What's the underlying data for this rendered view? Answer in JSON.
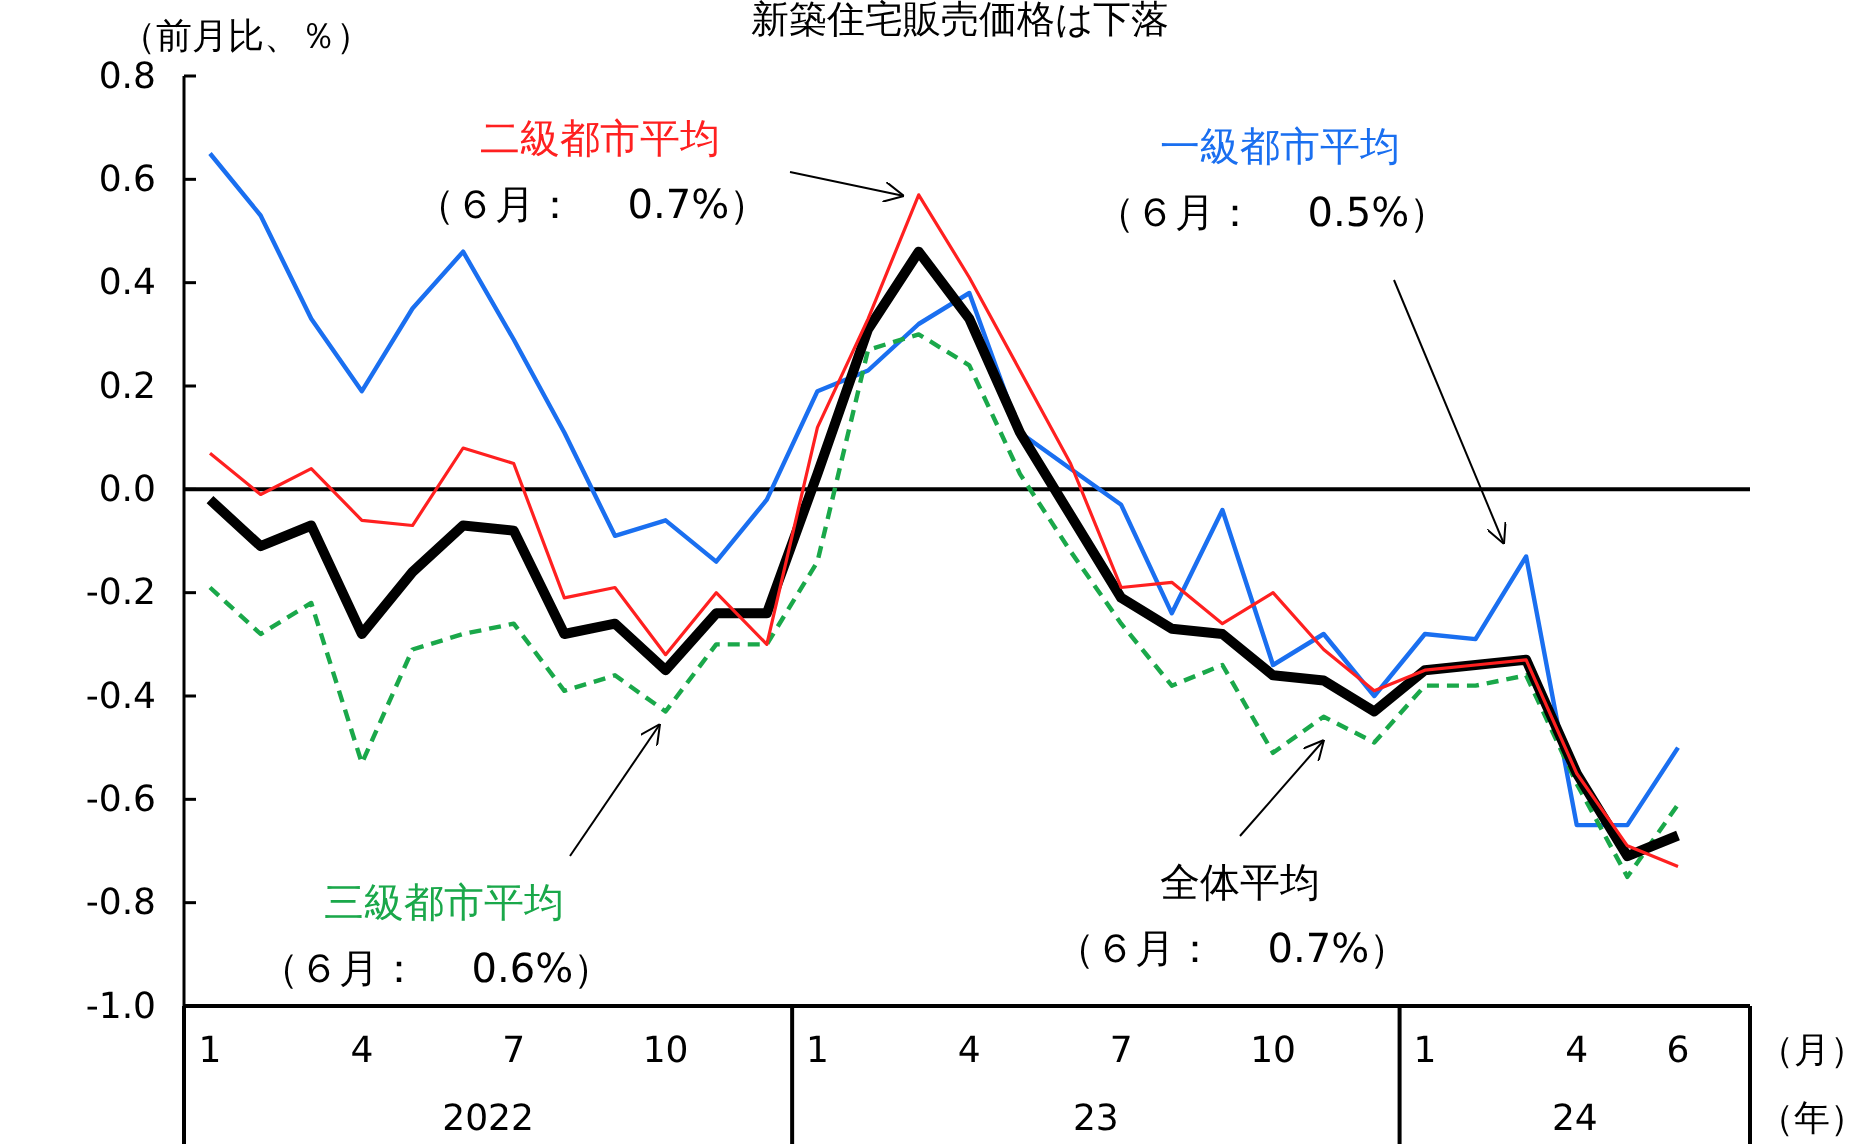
{
  "chart_data": {
    "type": "line",
    "title": "新築住宅販売価格は下落",
    "ylabel": "（前月比、％）",
    "xlabel": "（月）",
    "categories": [
      "1",
      null,
      null,
      "4",
      null,
      null,
      "7",
      null,
      null,
      "10",
      null,
      null,
      "1",
      null,
      null,
      "4",
      null,
      null,
      "7",
      null,
      null,
      "10",
      null,
      null,
      "1",
      null,
      null,
      "4",
      null,
      "6"
    ],
    "ylim": [
      -1.0,
      0.8
    ],
    "yticks": [
      {
        "value": -1.0,
        "label": "-1.0"
      },
      -0.8,
      -0.6,
      -0.4,
      -0.2,
      {
        "value": 0,
        "label": "0.0"
      },
      0.2,
      0.4,
      0.6,
      0.8
    ],
    "grid": false,
    "marker": "none",
    "ref_lines": [
      {
        "axis": "y",
        "value": 0,
        "color": "#000000"
      }
    ],
    "annotations": [
      "2022",
      "23",
      "24",
      "（年）",
      "（６月：　 0.5%）",
      "（６月：　 0.7%）",
      "（６月：　 0.6%）",
      "（６月：　 0.7%）"
    ],
    "series": [
      {
        "name": "一級都市平均",
        "color": "#1a6ff0",
        "line_style": "solid",
        "values": [
          0.65,
          0.53,
          0.33,
          0.19,
          0.35,
          0.46,
          0.29,
          0.11,
          -0.09,
          -0.06,
          -0.14,
          -0.02,
          0.19,
          0.23,
          0.32,
          0.38,
          0.11,
          0.04,
          -0.03,
          -0.24,
          -0.04,
          -0.34,
          -0.28,
          -0.4,
          -0.28,
          -0.29,
          -0.13,
          -0.65,
          -0.65,
          -0.5
        ]
      },
      {
        "name": "二級都市平均",
        "color": "#ff2020",
        "line_style": "solid",
        "values": [
          0.07,
          -0.01,
          0.04,
          -0.06,
          -0.07,
          0.08,
          0.05,
          -0.21,
          -0.19,
          -0.32,
          -0.2,
          -0.3,
          0.12,
          0.33,
          0.57,
          0.41,
          0.23,
          0.05,
          -0.19,
          -0.18,
          -0.26,
          -0.2,
          -0.31,
          -0.39,
          -0.35,
          -0.34,
          -0.33,
          -0.55,
          -0.69,
          -0.73
        ]
      },
      {
        "name": "三級都市平均",
        "color": "#1aa84a",
        "line_style": "dashed",
        "values": [
          -0.19,
          -0.28,
          -0.22,
          -0.53,
          -0.31,
          -0.28,
          -0.26,
          -0.39,
          -0.36,
          -0.43,
          -0.3,
          -0.3,
          -0.14,
          0.27,
          0.3,
          0.24,
          0.03,
          -0.12,
          -0.26,
          -0.38,
          -0.34,
          -0.51,
          -0.44,
          -0.49,
          -0.38,
          -0.38,
          -0.36,
          -0.57,
          -0.75,
          -0.61
        ]
      },
      {
        "name": "全体平均",
        "color": "#000000",
        "line_style": "solid",
        "values": [
          -0.02,
          -0.11,
          -0.07,
          -0.28,
          -0.16,
          -0.07,
          -0.08,
          -0.28,
          -0.26,
          -0.35,
          -0.24,
          -0.24,
          0.03,
          0.31,
          0.46,
          0.33,
          0.11,
          -0.05,
          -0.21,
          -0.27,
          -0.28,
          -0.36,
          -0.37,
          -0.43,
          -0.35,
          -0.34,
          -0.33,
          -0.55,
          -0.71,
          -0.67
        ]
      }
    ]
  }
}
